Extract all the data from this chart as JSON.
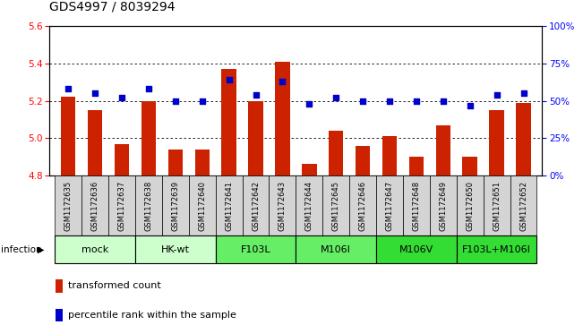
{
  "title": "GDS4997 / 8039294",
  "samples": [
    "GSM1172635",
    "GSM1172636",
    "GSM1172637",
    "GSM1172638",
    "GSM1172639",
    "GSM1172640",
    "GSM1172641",
    "GSM1172642",
    "GSM1172643",
    "GSM1172644",
    "GSM1172645",
    "GSM1172646",
    "GSM1172647",
    "GSM1172648",
    "GSM1172649",
    "GSM1172650",
    "GSM1172651",
    "GSM1172652"
  ],
  "bar_values": [
    5.22,
    5.15,
    4.97,
    5.2,
    4.94,
    4.94,
    5.37,
    5.2,
    5.41,
    4.86,
    5.04,
    4.96,
    5.01,
    4.9,
    5.07,
    4.9,
    5.15,
    5.19
  ],
  "dot_values": [
    58,
    55,
    52,
    58,
    50,
    50,
    64,
    54,
    63,
    48,
    52,
    50,
    50,
    50,
    50,
    47,
    54,
    55
  ],
  "ylim_left": [
    4.8,
    5.6
  ],
  "ylim_right": [
    0,
    100
  ],
  "yticks_left": [
    4.8,
    5.0,
    5.2,
    5.4,
    5.6
  ],
  "yticks_right": [
    0,
    25,
    50,
    75,
    100
  ],
  "ytick_labels_right": [
    "0%",
    "25%",
    "50%",
    "75%",
    "100%"
  ],
  "bar_color": "#cc2200",
  "dot_color": "#0000cc",
  "bar_bottom": 4.8,
  "groups": [
    {
      "label": "mock",
      "start": 0,
      "end": 2,
      "color": "#ccffcc"
    },
    {
      "label": "HK-wt",
      "start": 3,
      "end": 5,
      "color": "#ccffcc"
    },
    {
      "label": "F103L",
      "start": 6,
      "end": 8,
      "color": "#66ee66"
    },
    {
      "label": "M106I",
      "start": 9,
      "end": 11,
      "color": "#66ee66"
    },
    {
      "label": "M106V",
      "start": 12,
      "end": 14,
      "color": "#33dd33"
    },
    {
      "label": "F103L+M106I",
      "start": 15,
      "end": 17,
      "color": "#33dd33"
    }
  ],
  "legend_items": [
    {
      "color": "#cc2200",
      "label": "transformed count"
    },
    {
      "color": "#0000cc",
      "label": "percentile rank within the sample"
    }
  ],
  "grid_yticks": [
    5.0,
    5.2,
    5.4
  ],
  "title_fontsize": 10,
  "tick_fontsize": 7.5,
  "sample_fontsize": 6,
  "group_fontsize": 8,
  "legend_fontsize": 8
}
